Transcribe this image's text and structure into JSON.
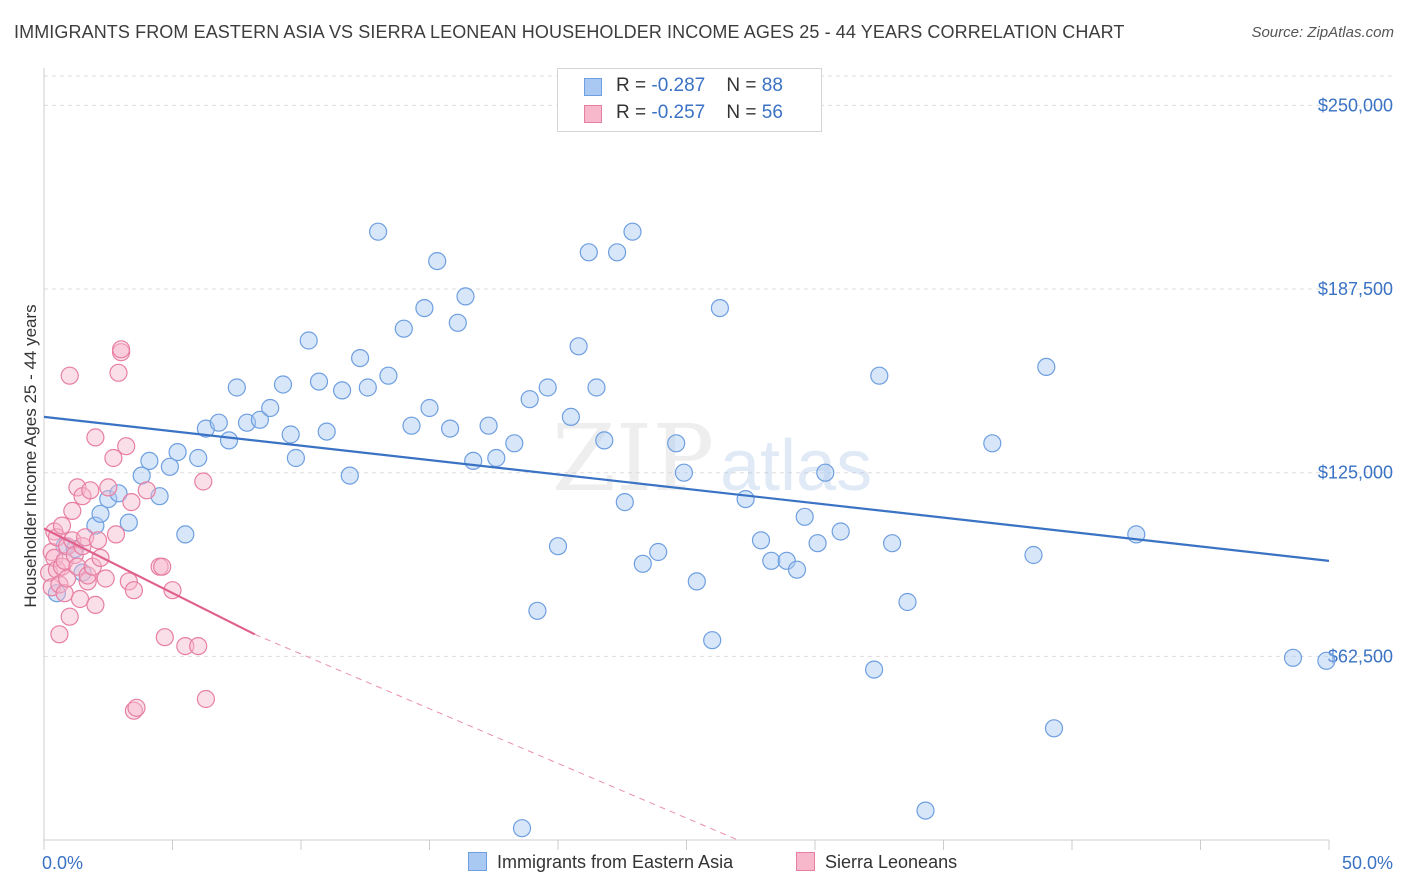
{
  "title": "IMMIGRANTS FROM EASTERN ASIA VS SIERRA LEONEAN HOUSEHOLDER INCOME AGES 25 - 44 YEARS CORRELATION CHART",
  "source": "Source: ZipAtlas.com",
  "watermark": {
    "zip": "ZIP",
    "atlas": "atlas"
  },
  "legend": {
    "rows": [
      {
        "r_label": "R = ",
        "r_value": "-0.287",
        "n_label": "N = ",
        "n_value": "88",
        "color": "#a9c8f2",
        "border": "#6e9fe0"
      },
      {
        "r_label": "R = ",
        "r_value": "-0.257",
        "n_label": "N = ",
        "n_value": "56",
        "color": "#f7b8cc",
        "border": "#e77fa3"
      }
    ]
  },
  "bottom_legend": [
    {
      "label": "Immigrants from Eastern Asia",
      "color": "#a9c8f2",
      "border": "#6e9fe0"
    },
    {
      "label": "Sierra Leoneans",
      "color": "#f7b8cc",
      "border": "#e77fa3"
    }
  ],
  "chart_data": {
    "type": "scatter",
    "title": "IMMIGRANTS FROM EASTERN ASIA VS SIERRA LEONEAN HOUSEHOLDER INCOME AGES 25 - 44 YEARS CORRELATION CHART",
    "xlabel": "",
    "ylabel": "Householder Income Ages 25 - 44 years",
    "xlim": [
      0,
      50
    ],
    "ylim": [
      0,
      260000
    ],
    "x_tick_labels": [
      "0.0%",
      "50.0%"
    ],
    "y_ticks": [
      62500,
      125000,
      187500,
      250000
    ],
    "y_tick_labels": [
      "$62,500",
      "$125,000",
      "$187,500",
      "$250,000"
    ],
    "grid": true,
    "series": [
      {
        "name": "Immigrants from Eastern Asia",
        "color": "#6e9fe0",
        "fill": "#a9c8f2",
        "trend": {
          "x": [
            0,
            50
          ],
          "y": [
            144000,
            95000
          ],
          "color": "#3a72c4"
        },
        "points": [
          [
            0.5,
            84000
          ],
          [
            0.8,
            100000
          ],
          [
            1.2,
            99000
          ],
          [
            1.5,
            91000
          ],
          [
            2.0,
            107000
          ],
          [
            2.2,
            111000
          ],
          [
            2.5,
            116000
          ],
          [
            2.9,
            118000
          ],
          [
            3.3,
            108000
          ],
          [
            3.8,
            124000
          ],
          [
            4.1,
            129000
          ],
          [
            4.5,
            117000
          ],
          [
            4.9,
            127000
          ],
          [
            5.2,
            132000
          ],
          [
            5.5,
            104000
          ],
          [
            6.0,
            130000
          ],
          [
            6.3,
            140000
          ],
          [
            6.8,
            142000
          ],
          [
            7.2,
            136000
          ],
          [
            7.5,
            154000
          ],
          [
            7.9,
            142000
          ],
          [
            8.4,
            143000
          ],
          [
            8.8,
            147000
          ],
          [
            9.3,
            155000
          ],
          [
            9.6,
            138000
          ],
          [
            9.8,
            130000
          ],
          [
            10.3,
            170000
          ],
          [
            10.7,
            156000
          ],
          [
            11.0,
            139000
          ],
          [
            11.6,
            153000
          ],
          [
            11.9,
            124000
          ],
          [
            12.3,
            164000
          ],
          [
            12.6,
            154000
          ],
          [
            13.0,
            207000
          ],
          [
            13.4,
            158000
          ],
          [
            14.0,
            174000
          ],
          [
            14.3,
            141000
          ],
          [
            14.8,
            181000
          ],
          [
            15.0,
            147000
          ],
          [
            15.3,
            197000
          ],
          [
            15.8,
            140000
          ],
          [
            16.1,
            176000
          ],
          [
            16.4,
            185000
          ],
          [
            16.7,
            129000
          ],
          [
            17.3,
            141000
          ],
          [
            17.6,
            130000
          ],
          [
            18.3,
            135000
          ],
          [
            18.6,
            4000
          ],
          [
            18.9,
            150000
          ],
          [
            19.2,
            78000
          ],
          [
            19.6,
            154000
          ],
          [
            20.0,
            100000
          ],
          [
            20.5,
            144000
          ],
          [
            20.8,
            168000
          ],
          [
            21.2,
            200000
          ],
          [
            21.5,
            154000
          ],
          [
            21.8,
            136000
          ],
          [
            22.3,
            200000
          ],
          [
            22.6,
            115000
          ],
          [
            22.9,
            207000
          ],
          [
            23.3,
            94000
          ],
          [
            23.9,
            98000
          ],
          [
            24.6,
            135000
          ],
          [
            24.9,
            125000
          ],
          [
            25.4,
            88000
          ],
          [
            26.0,
            68000
          ],
          [
            26.3,
            181000
          ],
          [
            27.3,
            116000
          ],
          [
            27.9,
            102000
          ],
          [
            28.3,
            95000
          ],
          [
            28.9,
            95000
          ],
          [
            29.3,
            92000
          ],
          [
            29.6,
            110000
          ],
          [
            30.1,
            101000
          ],
          [
            30.4,
            125000
          ],
          [
            31.0,
            105000
          ],
          [
            32.3,
            58000
          ],
          [
            32.5,
            158000
          ],
          [
            33.0,
            101000
          ],
          [
            33.6,
            81000
          ],
          [
            34.3,
            10000
          ],
          [
            36.9,
            135000
          ],
          [
            38.5,
            97000
          ],
          [
            39.0,
            161000
          ],
          [
            39.3,
            38000
          ],
          [
            42.5,
            104000
          ],
          [
            48.6,
            62000
          ],
          [
            49.9,
            61000
          ]
        ]
      },
      {
        "name": "Sierra Leoneans",
        "color": "#e77fa3",
        "fill": "#f7b8cc",
        "trend": {
          "x": [
            0,
            8.2
          ],
          "y": [
            106000,
            70000
          ],
          "color": "#e0608c",
          "dashed_to": [
            27.0,
            0
          ]
        },
        "points": [
          [
            0.2,
            91000
          ],
          [
            0.3,
            98000
          ],
          [
            0.3,
            86000
          ],
          [
            0.4,
            105000
          ],
          [
            0.4,
            96000
          ],
          [
            0.5,
            103000
          ],
          [
            0.5,
            92000
          ],
          [
            0.6,
            87000
          ],
          [
            0.6,
            70000
          ],
          [
            0.7,
            107000
          ],
          [
            0.7,
            93000
          ],
          [
            0.8,
            95000
          ],
          [
            0.8,
            84000
          ],
          [
            0.9,
            100000
          ],
          [
            0.9,
            89000
          ],
          [
            1.0,
            158000
          ],
          [
            1.0,
            76000
          ],
          [
            1.1,
            102000
          ],
          [
            1.1,
            112000
          ],
          [
            1.2,
            97000
          ],
          [
            1.3,
            120000
          ],
          [
            1.3,
            93000
          ],
          [
            1.4,
            82000
          ],
          [
            1.5,
            117000
          ],
          [
            1.5,
            100000
          ],
          [
            1.6,
            103000
          ],
          [
            1.7,
            88000
          ],
          [
            1.7,
            90000
          ],
          [
            1.8,
            119000
          ],
          [
            1.9,
            93000
          ],
          [
            2.0,
            137000
          ],
          [
            2.0,
            80000
          ],
          [
            2.1,
            102000
          ],
          [
            2.2,
            96000
          ],
          [
            2.4,
            89000
          ],
          [
            2.5,
            120000
          ],
          [
            2.7,
            130000
          ],
          [
            2.8,
            104000
          ],
          [
            2.9,
            159000
          ],
          [
            3.0,
            166000
          ],
          [
            3.0,
            167000
          ],
          [
            3.2,
            134000
          ],
          [
            3.3,
            88000
          ],
          [
            3.4,
            115000
          ],
          [
            3.5,
            85000
          ],
          [
            3.5,
            44000
          ],
          [
            3.6,
            45000
          ],
          [
            4.0,
            119000
          ],
          [
            4.5,
            93000
          ],
          [
            4.6,
            93000
          ],
          [
            4.7,
            69000
          ],
          [
            5.0,
            85000
          ],
          [
            5.5,
            66000
          ],
          [
            6.0,
            66000
          ],
          [
            6.2,
            122000
          ],
          [
            6.3,
            48000
          ]
        ]
      }
    ]
  }
}
